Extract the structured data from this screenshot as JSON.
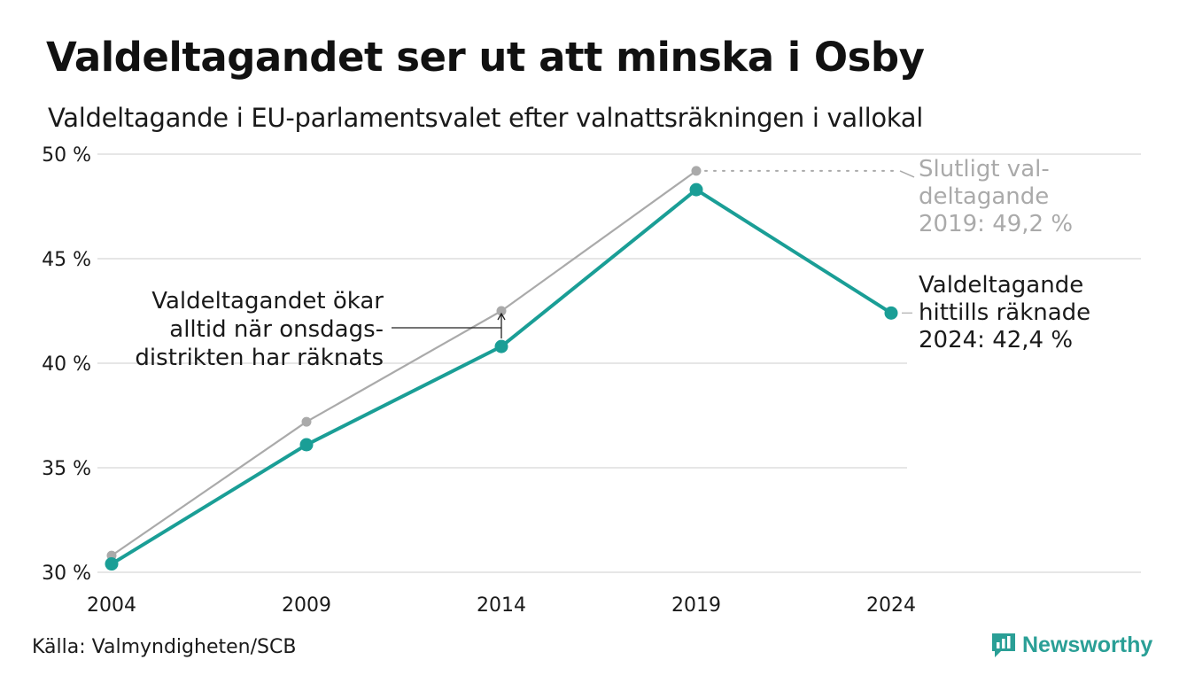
{
  "header": {
    "title": "Valdeltagandet ser ut att minska i Osby",
    "subtitle": "Valdeltagande i EU-parlamentsvalet efter valnattsräkningen i vallokal"
  },
  "footer": {
    "source": "Källa: Valmyndigheten/SCB",
    "brand": "Newsworthy",
    "brand_icon": "newsworthy-logo-icon"
  },
  "colors": {
    "final": "#aaaaaa",
    "election_night": "#1a9e96",
    "grid": "#e6e6e6",
    "text": "#1a1a1a",
    "muted": "#aaaaaa",
    "brand": "#2a9f96"
  },
  "chart_data": {
    "type": "line",
    "x": [
      2004,
      2009,
      2014,
      2019,
      2024
    ],
    "x_tick_labels": [
      "2004",
      "2009",
      "2014",
      "2019",
      "2024"
    ],
    "ylim": [
      30,
      50
    ],
    "y_ticks": [
      30,
      35,
      40,
      45,
      50
    ],
    "y_tick_labels": [
      "30 %",
      "35 %",
      "40 %",
      "45 %",
      "50 %"
    ],
    "grid": true,
    "series": [
      {
        "key": "final",
        "values": [
          30.8,
          37.2,
          42.5,
          49.2,
          null
        ]
      },
      {
        "key": "election_night",
        "values": [
          30.4,
          36.1,
          40.8,
          48.3,
          42.4
        ]
      }
    ],
    "annotations": {
      "gap_note": [
        "Valdeltagandet ökar",
        "alltid när onsdags-",
        "distrikten har räknats"
      ],
      "final_2019": [
        "Slutligt val-",
        "deltagande",
        "2019: 49,2 %"
      ],
      "current_2024": [
        "Valdeltagande",
        "hittills räknade",
        "2024: 42,4 %"
      ]
    }
  }
}
